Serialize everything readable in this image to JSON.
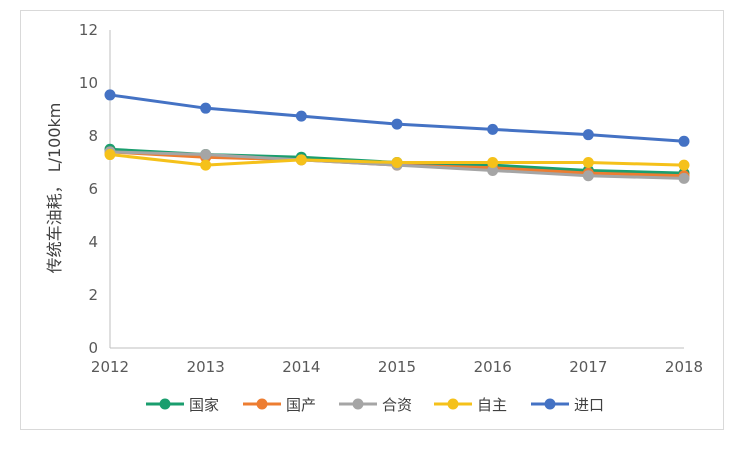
{
  "chart_data": {
    "type": "line",
    "title": "",
    "xlabel": "",
    "ylabel": "传统车油耗，  L/100km",
    "x": [
      "2012",
      "2013",
      "2014",
      "2015",
      "2016",
      "2017",
      "2018"
    ],
    "ylim": [
      0,
      12
    ],
    "yticks": [
      "0",
      "2",
      "4",
      "6",
      "8",
      "10",
      "12"
    ],
    "grid": false,
    "legend_position": "bottom",
    "series": [
      {
        "name": "国家",
        "color": "#1a9e6e",
        "values": [
          7.5,
          7.3,
          7.2,
          7.0,
          6.9,
          6.7,
          6.6
        ]
      },
      {
        "name": "国产",
        "color": "#ed7d31",
        "values": [
          7.4,
          7.2,
          7.1,
          6.9,
          6.8,
          6.6,
          6.5
        ]
      },
      {
        "name": "合资",
        "color": "#a5a5a5",
        "values": [
          7.4,
          7.3,
          7.1,
          6.9,
          6.7,
          6.5,
          6.4
        ]
      },
      {
        "name": "自主",
        "color": "#f5c11a",
        "values": [
          7.3,
          6.9,
          7.1,
          7.0,
          7.0,
          7.0,
          6.9
        ]
      },
      {
        "name": "进口",
        "color": "#4472c4",
        "values": [
          9.55,
          9.05,
          8.75,
          8.45,
          8.25,
          8.05,
          7.8
        ]
      }
    ]
  }
}
